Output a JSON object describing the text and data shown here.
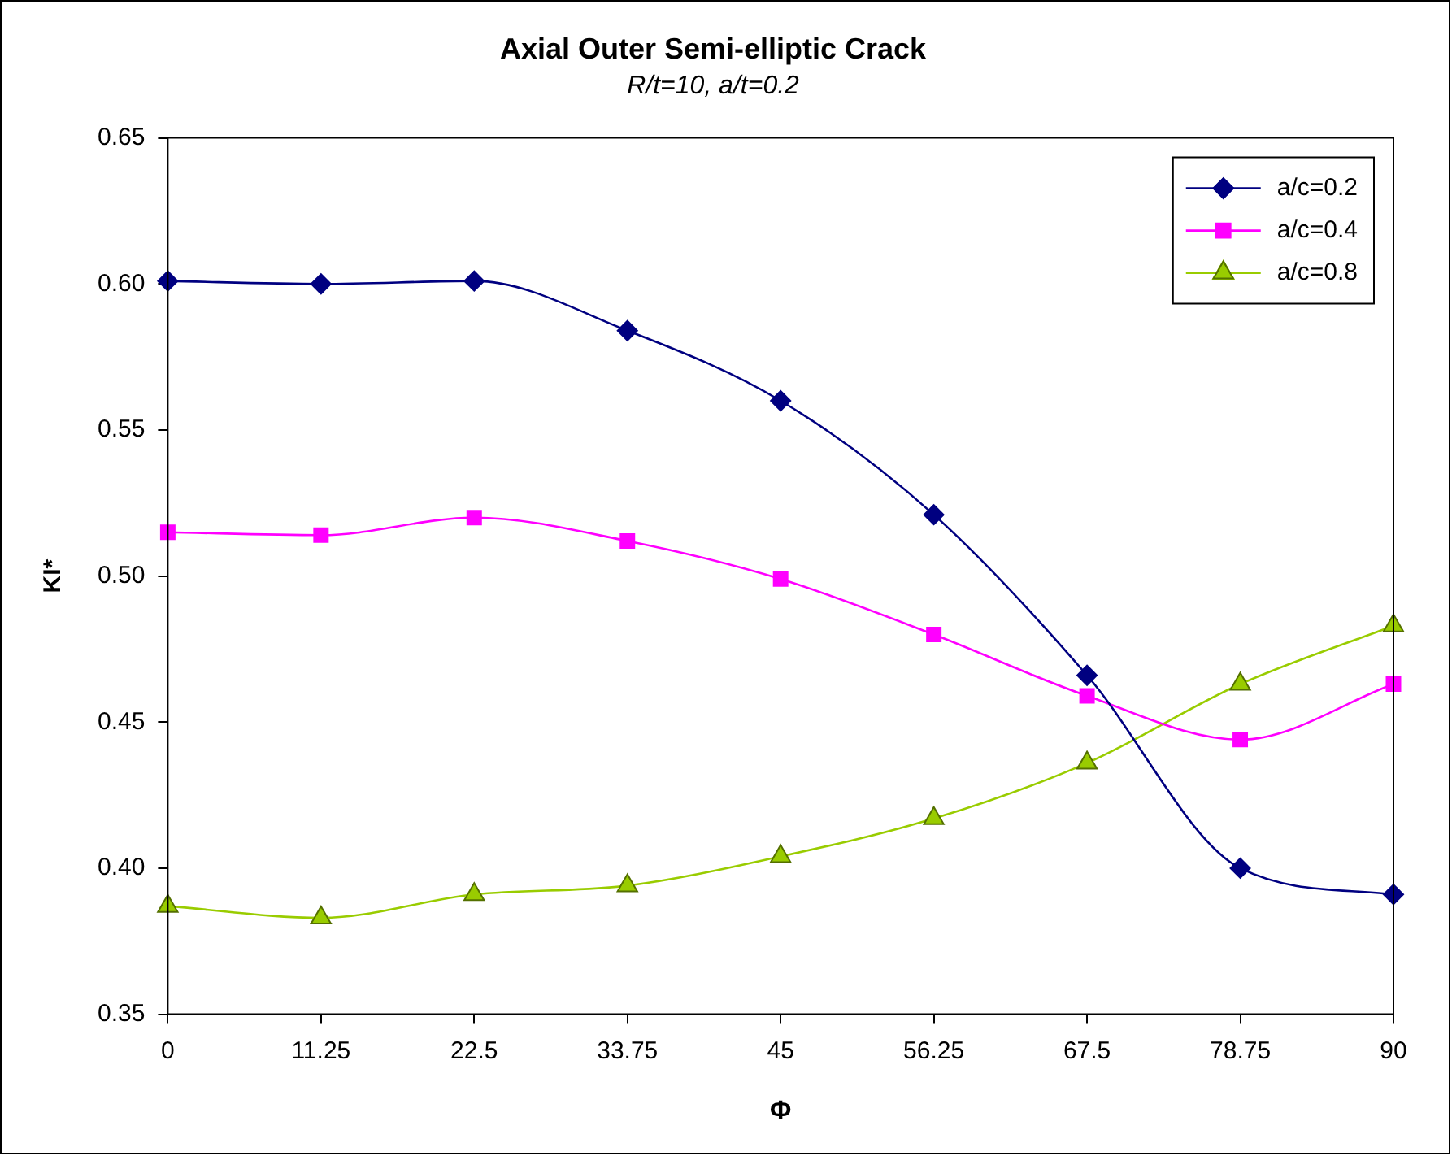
{
  "chart_data": {
    "type": "line",
    "title": "Axial Outer Semi-elliptic Crack",
    "subtitle": "R/t=10, a/t=0.2",
    "xlabel": "Φ",
    "ylabel": "KI*",
    "x": [
      0,
      11.25,
      22.5,
      33.75,
      45,
      56.25,
      67.5,
      78.75,
      90
    ],
    "xlim": [
      0,
      90
    ],
    "xticks": [
      0,
      11.25,
      22.5,
      33.75,
      45,
      56.25,
      67.5,
      78.75,
      90
    ],
    "ylim": [
      0.35,
      0.65
    ],
    "yticks": [
      {
        "value": 0.35,
        "label": "0.35"
      },
      {
        "value": 0.4,
        "label": "0.40"
      },
      {
        "value": 0.45,
        "label": "0.45"
      },
      {
        "value": 0.5,
        "label": "0.50"
      },
      {
        "value": 0.55,
        "label": "0.55"
      },
      {
        "value": 0.6,
        "label": "0.60"
      },
      {
        "value": 0.65,
        "label": "0.65"
      }
    ],
    "grid": false,
    "legend": "top right",
    "line_style": "solid",
    "series": [
      {
        "name": "a/c=0.2",
        "color": "#000080",
        "marker": "diamond",
        "values": [
          0.601,
          0.6,
          0.601,
          0.584,
          0.56,
          0.521,
          0.466,
          0.4,
          0.391
        ]
      },
      {
        "name": "a/c=0.4",
        "color": "#ff00ff",
        "marker": "square",
        "values": [
          0.515,
          0.514,
          0.52,
          0.512,
          0.499,
          0.48,
          0.459,
          0.444,
          0.463
        ]
      },
      {
        "name": "a/c=0.8",
        "color": "#99cc00",
        "marker": "triangle",
        "values": [
          0.387,
          0.383,
          0.391,
          0.394,
          0.404,
          0.417,
          0.436,
          0.463,
          0.483
        ]
      }
    ]
  }
}
